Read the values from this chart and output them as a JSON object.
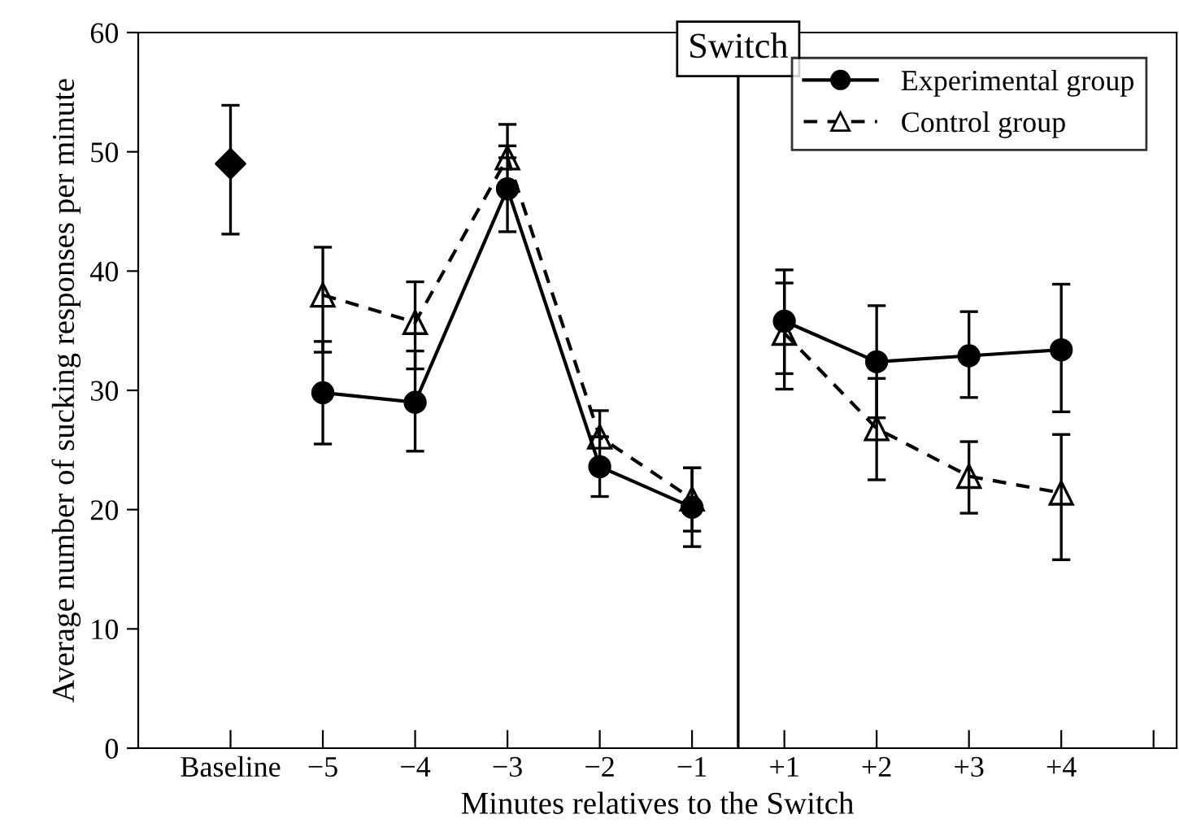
{
  "chart_data": {
    "type": "line",
    "xlabel": "Minutes relatives to the Switch",
    "ylabel": "Average number of sucking responses per minute",
    "categories": [
      "Baseline",
      "−5",
      "−4",
      "−3",
      "−2",
      "−1",
      "+1",
      "+2",
      "+3",
      "+4",
      null
    ],
    "ylim": [
      0,
      60
    ],
    "yticks": [
      0,
      10,
      20,
      30,
      40,
      50,
      60
    ],
    "grid": false,
    "legend": "top right",
    "annotations": [
      "Switch"
    ],
    "series": [
      {
        "type": "scatter",
        "color": "#000000",
        "marker": "diamond",
        "values": [
          49,
          null,
          null,
          null,
          null,
          null,
          null,
          null,
          null,
          null,
          null
        ],
        "errors": [
          [
            43.1,
            53.9
          ],
          null,
          null,
          null,
          null,
          null,
          null,
          null,
          null,
          null,
          null
        ]
      },
      {
        "name": "Experimental group",
        "color": "#000000",
        "marker": "circle",
        "line_style": "solid",
        "values": [
          null,
          29.8,
          29.0,
          46.9,
          23.6,
          20.2,
          35.8,
          32.4,
          32.9,
          33.4,
          null
        ],
        "errors": [
          null,
          [
            25.5,
            34.1
          ],
          [
            24.9,
            33.3
          ],
          [
            43.3,
            50.5
          ],
          [
            21.1,
            26.1
          ],
          [
            16.9,
            23.5
          ],
          [
            31.4,
            40.1
          ],
          [
            27.7,
            37.1
          ],
          [
            29.4,
            36.6
          ],
          [
            28.2,
            38.9
          ],
          null
        ]
      },
      {
        "name": "Control group",
        "color": "#000000",
        "marker": "triangle",
        "line_style": "dashed",
        "values": [
          null,
          38.0,
          35.7,
          49.5,
          26.1,
          20.9,
          34.8,
          26.8,
          22.8,
          21.4,
          null
        ],
        "errors": [
          null,
          [
            33.2,
            42.0
          ],
          [
            31.8,
            39.1
          ],
          [
            49.5,
            52.3
          ],
          [
            26.1,
            28.3
          ],
          [
            18.2,
            23.5
          ],
          [
            30.1,
            39.0
          ],
          [
            22.5,
            31.0
          ],
          [
            19.7,
            25.7
          ],
          [
            15.8,
            26.3
          ],
          null
        ]
      }
    ]
  }
}
